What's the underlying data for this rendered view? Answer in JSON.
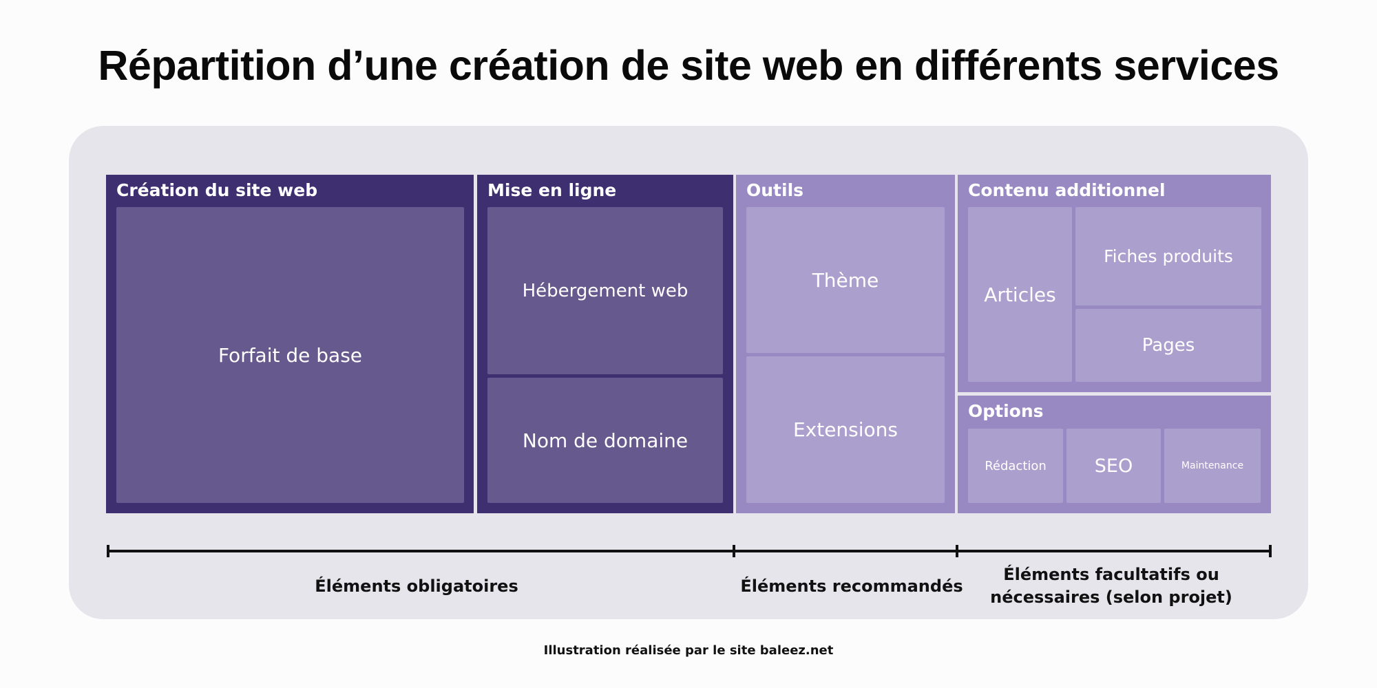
{
  "title": "Répartition d’une création de site web en différents services",
  "colors": {
    "background": "#fcfcfd",
    "panel": "#e6e5ec",
    "mandatory_group": "#3d2f70",
    "mandatory_cell": "#65598d",
    "optional_group": "#9889c2",
    "optional_cell": "#aba0cd"
  },
  "groups": {
    "creation": {
      "title": "Création du site web",
      "items": [
        "Forfait de base"
      ]
    },
    "online": {
      "title": "Mise en ligne",
      "items": [
        "Hébergement web",
        "Nom de domaine"
      ]
    },
    "tools": {
      "title": "Outils",
      "items": [
        "Thème",
        "Extensions"
      ]
    },
    "content": {
      "title": "Contenu additionnel",
      "items": [
        "Articles",
        "Fiches produits",
        "Pages"
      ]
    },
    "options": {
      "title": "Options",
      "items": [
        "Rédaction",
        "SEO",
        "Maintenance"
      ]
    }
  },
  "axis": {
    "mandatory": "Éléments obligatoires",
    "recommended": "Éléments recommandés",
    "optional_line1": "Éléments facultatifs ou",
    "optional_line2": "nécessaires (selon projet)"
  },
  "credit": "Illustration réalisée par le site baleez.net"
}
